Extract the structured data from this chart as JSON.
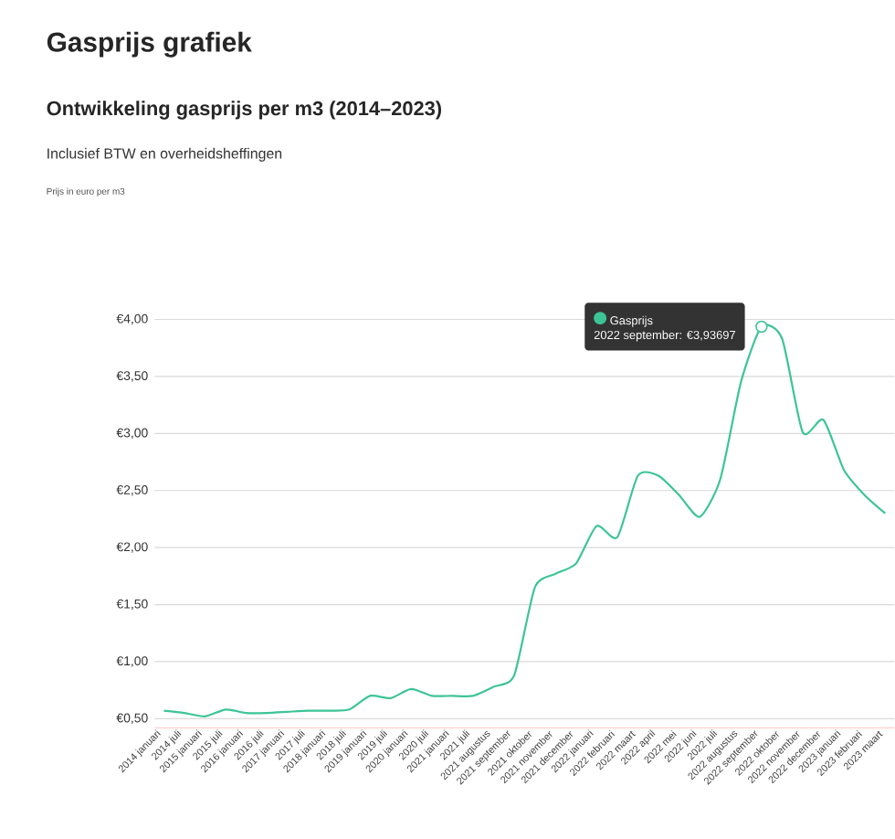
{
  "chart_data": {
    "type": "line",
    "title": "Gasprijs grafiek",
    "subtitle": "Ontwikkeling gasprijs per m3 (2014–2023)",
    "annotations": [
      "Inclusief BTW en overheidsheffingen",
      "Prijs in euro per m3",
      {
        "text": "2022 september: €3,93697",
        "x": "2022 september",
        "y": 3.93697
      }
    ],
    "categories": [
      "2014 januari",
      "2014 juli",
      "2015 januari",
      "2015 juli",
      "2016 januari",
      "2016 juli",
      "2017 januari",
      "2017 juli",
      "2018 januari",
      "2018 juli",
      "2019 januari",
      "2019 juli",
      "2020 januari",
      "2020 juli",
      "2021 januari",
      "2021 juli",
      "2021 augustus",
      "2021 september",
      "2021 oktober",
      "2021 november",
      "2021 december",
      "2022 januari",
      "2022 februari",
      "2022 maart",
      "2022 april",
      "2022 mei",
      "2022 juni",
      "2022 juli",
      "2022 augustus",
      "2022 september",
      "2022 oktober",
      "2022 november",
      "2022 december",
      "2023 januari",
      "2023 februari",
      "2023 maart"
    ],
    "series": [
      {
        "name": "Gasprijs",
        "color": "#3cc497",
        "values": [
          0.57,
          0.55,
          0.52,
          0.58,
          0.55,
          0.55,
          0.56,
          0.57,
          0.57,
          0.58,
          0.7,
          0.68,
          0.76,
          0.7,
          0.7,
          0.7,
          0.78,
          0.88,
          1.65,
          1.77,
          1.86,
          2.19,
          2.09,
          2.63,
          2.63,
          2.46,
          2.27,
          2.6,
          3.45,
          3.93697,
          3.83,
          3.01,
          3.12,
          2.68,
          2.46,
          2.3
        ]
      }
    ],
    "ylim": [
      0.42,
      4.0
    ],
    "yticks": [
      {
        "value": 0.5,
        "label": "€0,50"
      },
      {
        "value": 1.0,
        "label": "€1,00"
      },
      {
        "value": 1.5,
        "label": "€1,50"
      },
      {
        "value": 2.0,
        "label": "€2,00"
      },
      {
        "value": 2.5,
        "label": "€2,50"
      },
      {
        "value": 3.0,
        "label": "€3,00"
      },
      {
        "value": 3.5,
        "label": "€3,50"
      },
      {
        "value": 4.0,
        "label": "€4,00"
      }
    ],
    "grid": "y",
    "marker": "none",
    "line_style": "solid",
    "legend": "top"
  }
}
